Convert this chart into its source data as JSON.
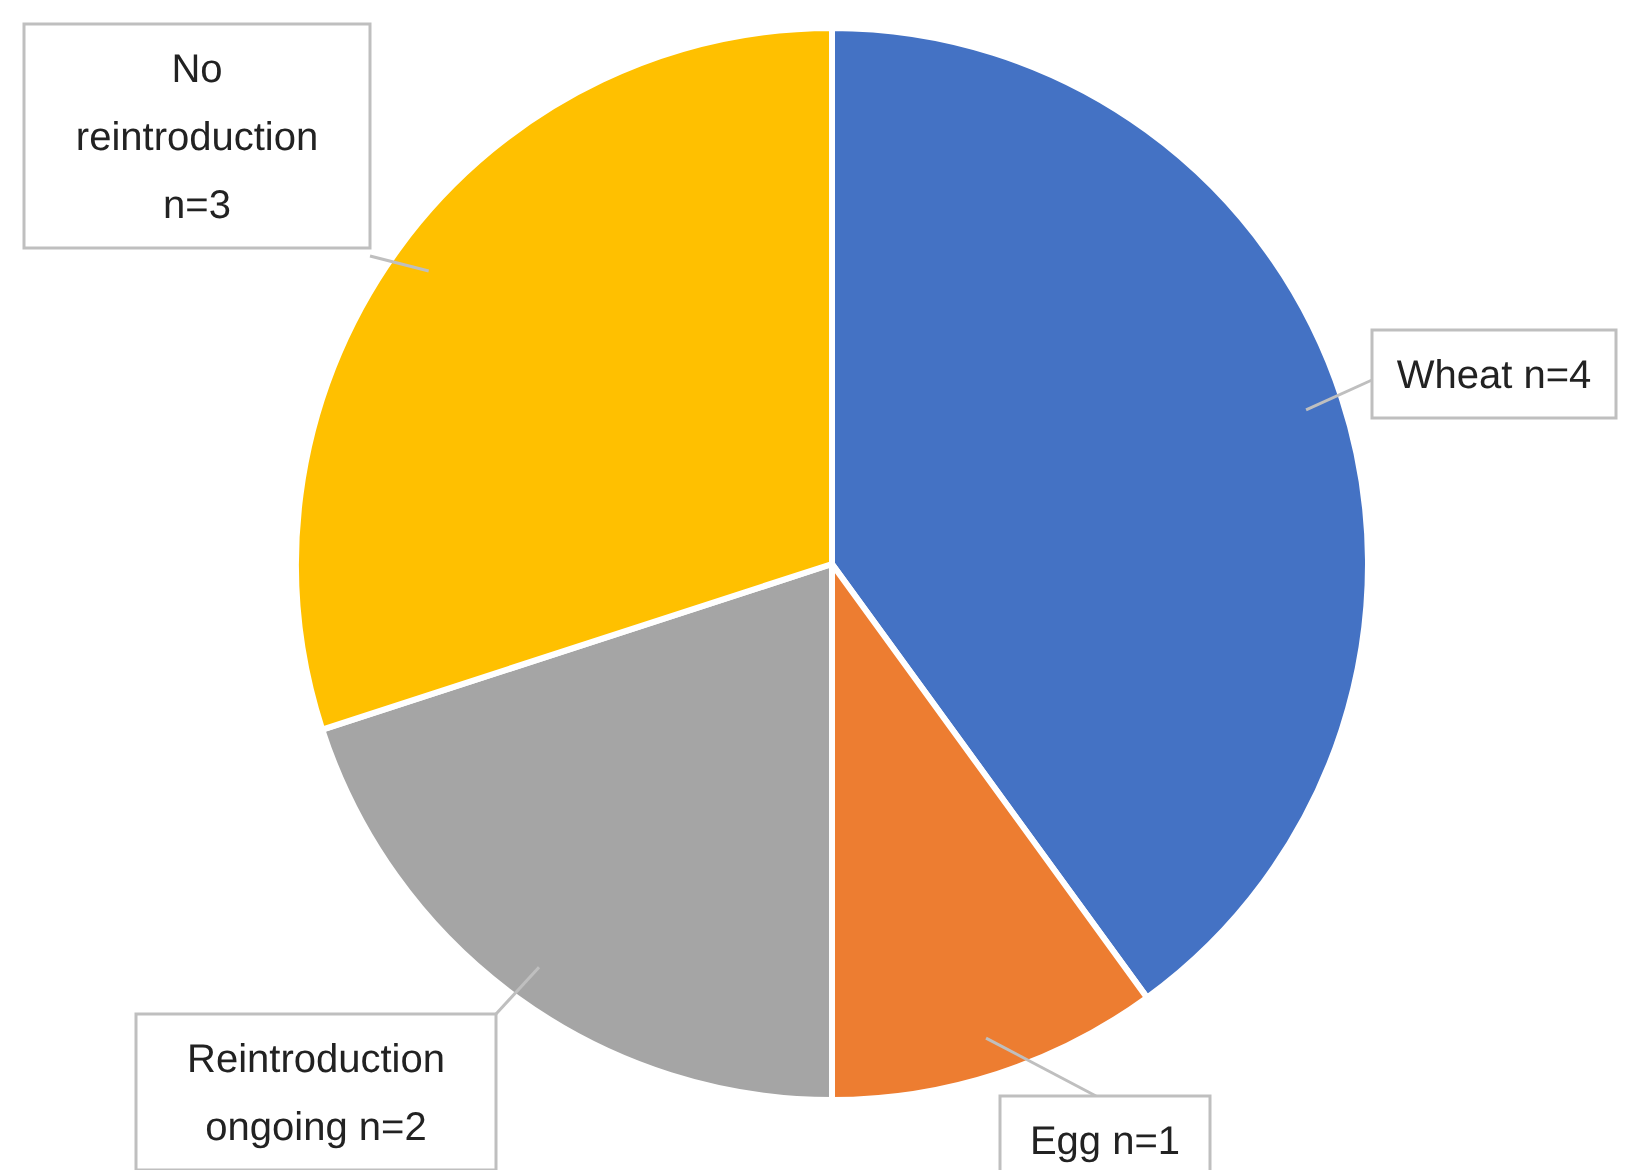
{
  "chart_data": {
    "type": "pie",
    "categories": [
      "Wheat",
      "Egg",
      "Reintroduction ongoing",
      "No reintroduction"
    ],
    "values": [
      4,
      1,
      2,
      3
    ],
    "value_labels": [
      "n=4",
      "n=1",
      "n=2",
      "n=3"
    ],
    "colors": [
      "#4472c4",
      "#ed7d31",
      "#a5a5a5",
      "#ffc000"
    ]
  }
}
